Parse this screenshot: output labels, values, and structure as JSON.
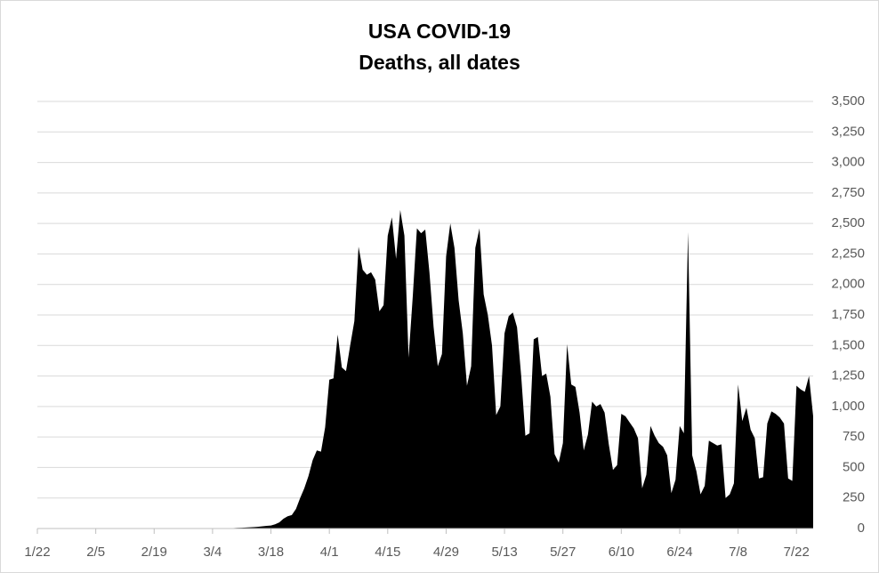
{
  "chart_data": {
    "type": "area",
    "title": "USA COVID-19",
    "subtitle": "Deaths, all dates",
    "color": "#000000",
    "categories": [
      "1/22",
      null,
      null,
      null,
      null,
      null,
      null,
      null,
      null,
      null,
      null,
      null,
      null,
      null,
      "2/5",
      null,
      null,
      null,
      null,
      null,
      null,
      null,
      null,
      null,
      null,
      null,
      null,
      null,
      "2/19",
      null,
      null,
      null,
      null,
      null,
      null,
      null,
      null,
      null,
      null,
      null,
      null,
      null,
      "3/4",
      null,
      null,
      null,
      null,
      null,
      null,
      null,
      null,
      null,
      null,
      null,
      null,
      null,
      "3/18",
      null,
      null,
      null,
      null,
      null,
      null,
      null,
      null,
      null,
      null,
      null,
      null,
      null,
      "4/1",
      null,
      null,
      null,
      null,
      null,
      null,
      null,
      null,
      null,
      null,
      null,
      null,
      null,
      "4/15",
      null,
      null,
      null,
      null,
      null,
      null,
      null,
      null,
      null,
      null,
      null,
      null,
      null,
      "4/29",
      null,
      null,
      null,
      null,
      null,
      null,
      null,
      null,
      null,
      null,
      null,
      null,
      null,
      "5/13",
      null,
      null,
      null,
      null,
      null,
      null,
      null,
      null,
      null,
      null,
      null,
      null,
      null,
      "5/27",
      null,
      null,
      null,
      null,
      null,
      null,
      null,
      null,
      null,
      null,
      null,
      null,
      null,
      "6/10",
      null,
      null,
      null,
      null,
      null,
      null,
      null,
      null,
      null,
      null,
      null,
      null,
      null,
      "6/24",
      null,
      null,
      null,
      null,
      null,
      null,
      null,
      null,
      null,
      null,
      null,
      null,
      null,
      "7/8",
      null,
      null,
      null,
      null,
      null,
      null,
      null,
      null,
      null,
      null,
      null,
      null,
      null,
      "7/22",
      null,
      null,
      null,
      null
    ],
    "values": [
      0,
      0,
      0,
      0,
      0,
      0,
      0,
      0,
      0,
      0,
      0,
      0,
      0,
      0,
      0,
      0,
      0,
      0,
      0,
      0,
      0,
      0,
      0,
      0,
      0,
      0,
      0,
      0,
      0,
      0,
      0,
      0,
      0,
      0,
      0,
      0,
      0,
      0,
      0,
      0,
      0,
      0,
      1,
      1,
      2,
      1,
      2,
      4,
      5,
      6,
      8,
      10,
      12,
      15,
      18,
      22,
      25,
      35,
      50,
      80,
      100,
      110,
      160,
      250,
      330,
      430,
      560,
      640,
      630,
      830,
      1220,
      1230,
      1590,
      1320,
      1290,
      1500,
      1700,
      2310,
      2120,
      2080,
      2100,
      2040,
      1780,
      1830,
      2400,
      2550,
      2210,
      2610,
      2400,
      1400,
      1900,
      2460,
      2420,
      2450,
      2100,
      1650,
      1330,
      1430,
      2230,
      2500,
      2300,
      1870,
      1600,
      1170,
      1330,
      2300,
      2460,
      1920,
      1750,
      1500,
      930,
      1000,
      1600,
      1740,
      1770,
      1650,
      1250,
      760,
      780,
      1550,
      1570,
      1250,
      1270,
      1080,
      610,
      540,
      700,
      1510,
      1180,
      1160,
      950,
      640,
      770,
      1040,
      1000,
      1020,
      950,
      690,
      480,
      520,
      940,
      920,
      870,
      820,
      740,
      330,
      440,
      840,
      760,
      700,
      670,
      600,
      290,
      400,
      840,
      780,
      2430,
      600,
      470,
      280,
      350,
      720,
      700,
      680,
      690,
      250,
      280,
      370,
      1180,
      880,
      990,
      810,
      740,
      410,
      420,
      860,
      960,
      940,
      910,
      860,
      410,
      390,
      1170,
      1140,
      1120,
      1250,
      920
    ],
    "ylim": [
      0,
      3500
    ],
    "yticks": [
      0,
      250,
      500,
      750,
      {
        "value": 1000,
        "label": "1,000"
      },
      {
        "value": 1250,
        "label": "1,250"
      },
      {
        "value": 1500,
        "label": "1,500"
      },
      {
        "value": 1750,
        "label": "1,750"
      },
      {
        "value": 2000,
        "label": "2,000"
      },
      {
        "value": 2250,
        "label": "2,250"
      },
      {
        "value": 2500,
        "label": "2,500"
      },
      {
        "value": 2750,
        "label": "2,750"
      },
      {
        "value": 3000,
        "label": "3,000"
      },
      {
        "value": 3250,
        "label": "3,250"
      },
      {
        "value": 3500,
        "label": "3,500"
      }
    ],
    "grid": true
  }
}
